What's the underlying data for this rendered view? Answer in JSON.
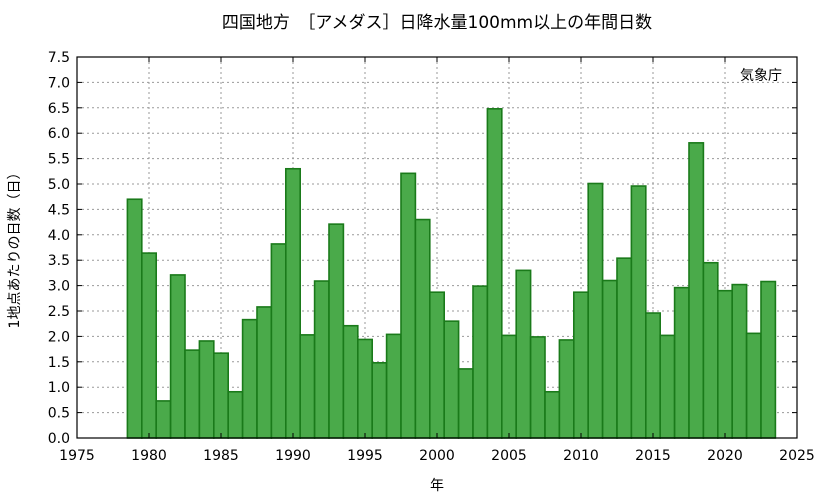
{
  "chart_data": {
    "type": "bar",
    "title": "四国地方　［アメダス］日降水量100mm以上の年間日数",
    "xlabel": "年",
    "ylabel": "1地点あたりの日数（日）",
    "annotation": "気象庁",
    "xlim": [
      1975,
      2025
    ],
    "ylim": [
      0,
      7.5
    ],
    "xticks": [
      1975,
      1980,
      1985,
      1990,
      1995,
      2000,
      2005,
      2010,
      2015,
      2020,
      2025
    ],
    "yticks": [
      "0.0",
      "0.5",
      "1.0",
      "1.5",
      "2.0",
      "2.5",
      "3.0",
      "3.5",
      "4.0",
      "4.5",
      "5.0",
      "5.5",
      "6.0",
      "6.5",
      "7.0",
      "7.5"
    ],
    "grid": true,
    "bar_fill": "#4aaa4a",
    "bar_edge": "#1a7a1a",
    "x": [
      1979,
      1980,
      1981,
      1982,
      1983,
      1984,
      1985,
      1986,
      1987,
      1988,
      1989,
      1990,
      1991,
      1992,
      1993,
      1994,
      1995,
      1996,
      1997,
      1998,
      1999,
      2000,
      2001,
      2002,
      2003,
      2004,
      2005,
      2006,
      2007,
      2008,
      2009,
      2010,
      2011,
      2012,
      2013,
      2014,
      2015,
      2016,
      2017,
      2018,
      2019,
      2020,
      2021,
      2022,
      2023
    ],
    "values": [
      4.7,
      3.64,
      0.73,
      3.21,
      1.73,
      1.91,
      1.67,
      0.91,
      2.33,
      2.58,
      3.82,
      5.3,
      2.03,
      3.09,
      4.21,
      2.21,
      1.94,
      1.48,
      2.04,
      5.21,
      4.3,
      2.87,
      2.3,
      1.36,
      2.99,
      6.48,
      2.02,
      3.3,
      1.99,
      0.91,
      1.93,
      2.87,
      5.01,
      3.1,
      3.54,
      4.96,
      2.46,
      2.02,
      2.96,
      5.81,
      3.45,
      2.9,
      3.02,
      2.06,
      3.08
    ]
  }
}
